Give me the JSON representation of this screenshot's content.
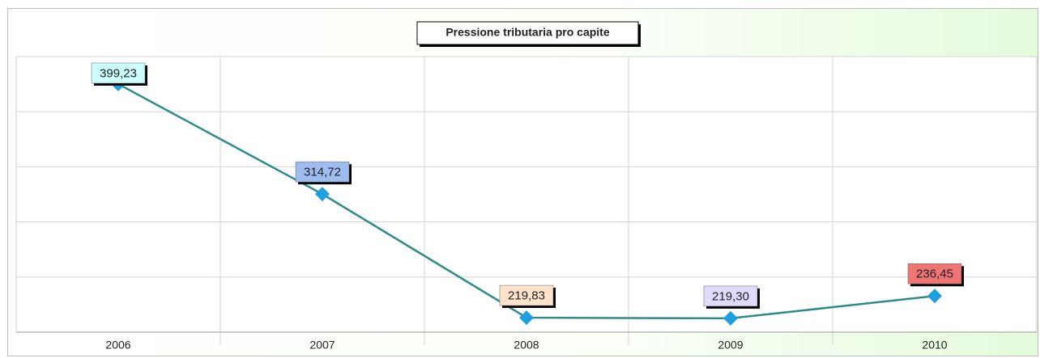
{
  "chart_data": {
    "type": "line",
    "title": "Pressione tributaria pro capite",
    "categories": [
      "2006",
      "2007",
      "2008",
      "2009",
      "2010"
    ],
    "values": [
      399.23,
      314.72,
      219.83,
      219.3,
      236.45
    ],
    "value_labels": [
      "399,23",
      "314,72",
      "219,83",
      "219,30",
      "236,45"
    ],
    "color": "#2e8b8b",
    "marker_color": "#1ea0e0",
    "label_colors": [
      "#ccffff",
      "#9dbdf0",
      "#fde2cc",
      "#e2dafa",
      "#f07474"
    ],
    "ylim": [
      208.7,
      420.3
    ],
    "yticks": [
      208.7,
      251,
      293.4,
      335.7,
      378,
      420.3
    ],
    "grid": true
  }
}
